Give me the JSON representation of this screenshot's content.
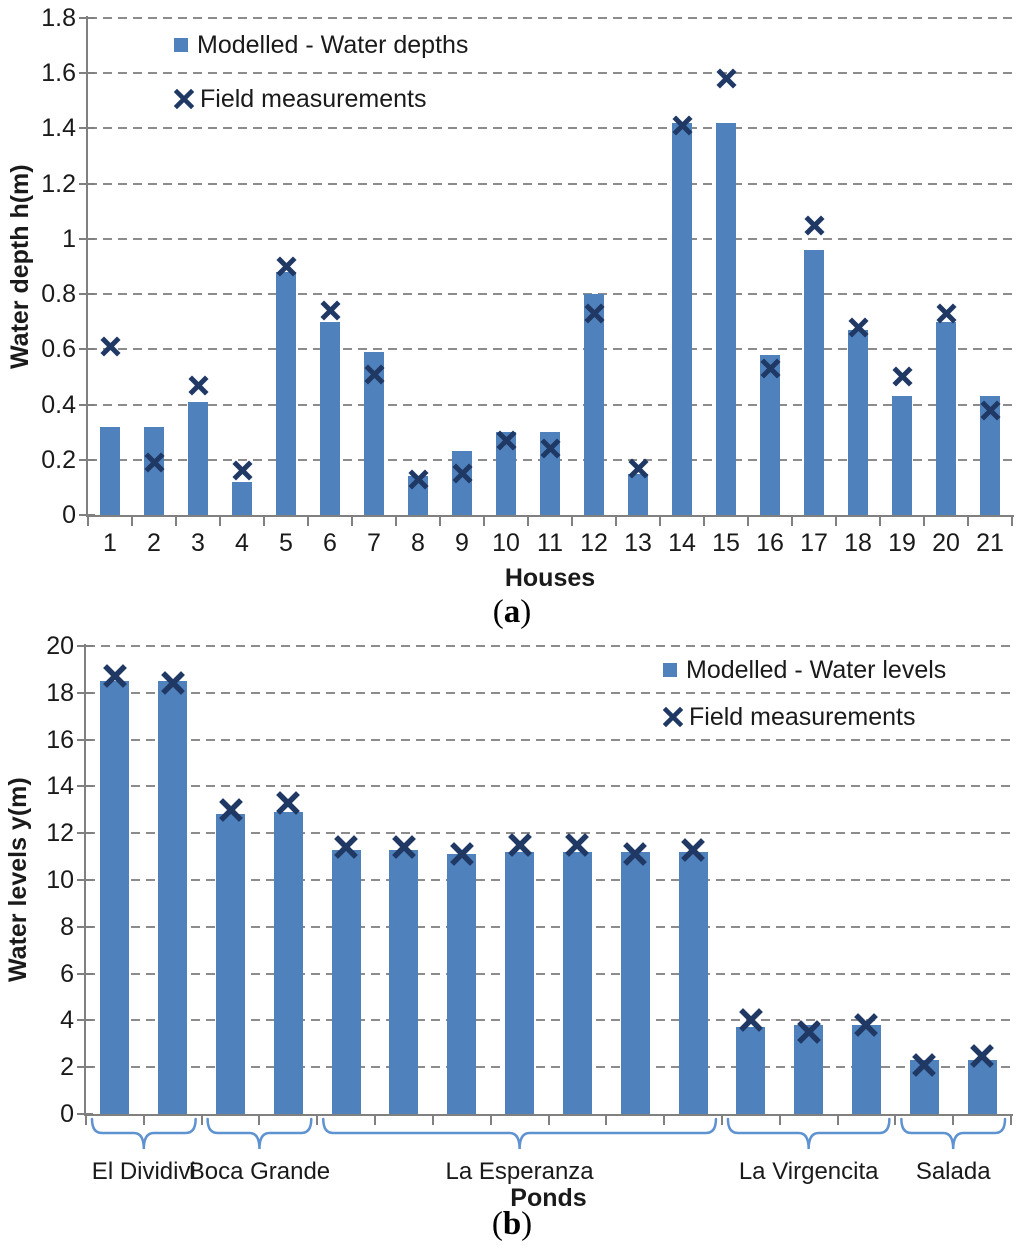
{
  "style": {
    "background": "#FFFFFF",
    "bar_color": "#4F81BD",
    "marker_color": "#1F3864",
    "grid_color": "#8C8C8C",
    "axis_color": "#808080",
    "text_color": "#1A1A1A",
    "brace_color": "#5E92D0"
  },
  "chart_data": [
    {
      "id": "a",
      "type": "bar",
      "categories": [
        "1",
        "2",
        "3",
        "4",
        "5",
        "6",
        "7",
        "8",
        "9",
        "10",
        "11",
        "12",
        "13",
        "14",
        "15",
        "16",
        "17",
        "18",
        "19",
        "20",
        "21"
      ],
      "series": [
        {
          "name": "Modelled - Water depths",
          "type": "bar",
          "color": "#4F81BD",
          "values": [
            0.32,
            0.32,
            0.41,
            0.12,
            0.88,
            0.7,
            0.59,
            0.14,
            0.23,
            0.3,
            0.3,
            0.8,
            0.15,
            1.42,
            1.42,
            0.58,
            0.96,
            0.67,
            0.43,
            0.7,
            0.43
          ]
        },
        {
          "name": "Field measurements",
          "type": "scatter",
          "marker": "x",
          "color": "#1F3864",
          "values": [
            0.61,
            0.19,
            0.47,
            0.16,
            0.9,
            0.74,
            0.51,
            0.13,
            0.15,
            0.27,
            0.24,
            0.73,
            0.17,
            1.41,
            1.58,
            0.53,
            1.05,
            0.68,
            0.5,
            0.73,
            0.38
          ]
        }
      ],
      "xlabel": "Houses",
      "ylabel": "Water depth h(m)",
      "ylim": [
        0,
        1.8
      ],
      "ytick_step": 0.2,
      "yticks": [
        "0",
        "0.2",
        "0.4",
        "0.6",
        "0.8",
        "1",
        "1.2",
        "1.4",
        "1.6",
        "1.8"
      ],
      "grid": "horizontal-dashed",
      "legend_position": "inside-top-left",
      "caption": {
        "open": "(",
        "letter": "a",
        "close": ")"
      }
    },
    {
      "id": "b",
      "type": "bar",
      "groups": [
        {
          "label": "El Dividivi",
          "count": 2
        },
        {
          "label": "Boca Grande",
          "count": 2
        },
        {
          "label": "La Esperanza",
          "count": 7
        },
        {
          "label": "La Virgencita",
          "count": 3
        },
        {
          "label": "Salada",
          "count": 2
        }
      ],
      "series": [
        {
          "name": "Modelled - Water levels",
          "type": "bar",
          "color": "#4F81BD",
          "values": [
            18.5,
            18.5,
            12.8,
            12.9,
            11.3,
            11.3,
            11.1,
            11.2,
            11.2,
            11.2,
            11.2,
            3.7,
            3.8,
            3.8,
            2.3,
            2.3
          ]
        },
        {
          "name": "Field measurements",
          "type": "scatter",
          "marker": "x",
          "color": "#1F3864",
          "values": [
            18.7,
            18.4,
            13.0,
            13.3,
            11.4,
            11.4,
            11.1,
            11.5,
            11.5,
            11.1,
            11.3,
            4.0,
            3.5,
            3.8,
            2.1,
            2.5
          ]
        }
      ],
      "xlabel": "Ponds",
      "ylabel": "Water levels y(m)",
      "ylim": [
        0,
        20
      ],
      "ytick_step": 2,
      "yticks": [
        "0",
        "2",
        "4",
        "6",
        "8",
        "10",
        "12",
        "14",
        "16",
        "18",
        "20"
      ],
      "grid": "horizontal-dashed",
      "legend_position": "inside-top-right",
      "caption": {
        "open": "(",
        "letter": "b",
        "close": ")"
      }
    }
  ]
}
